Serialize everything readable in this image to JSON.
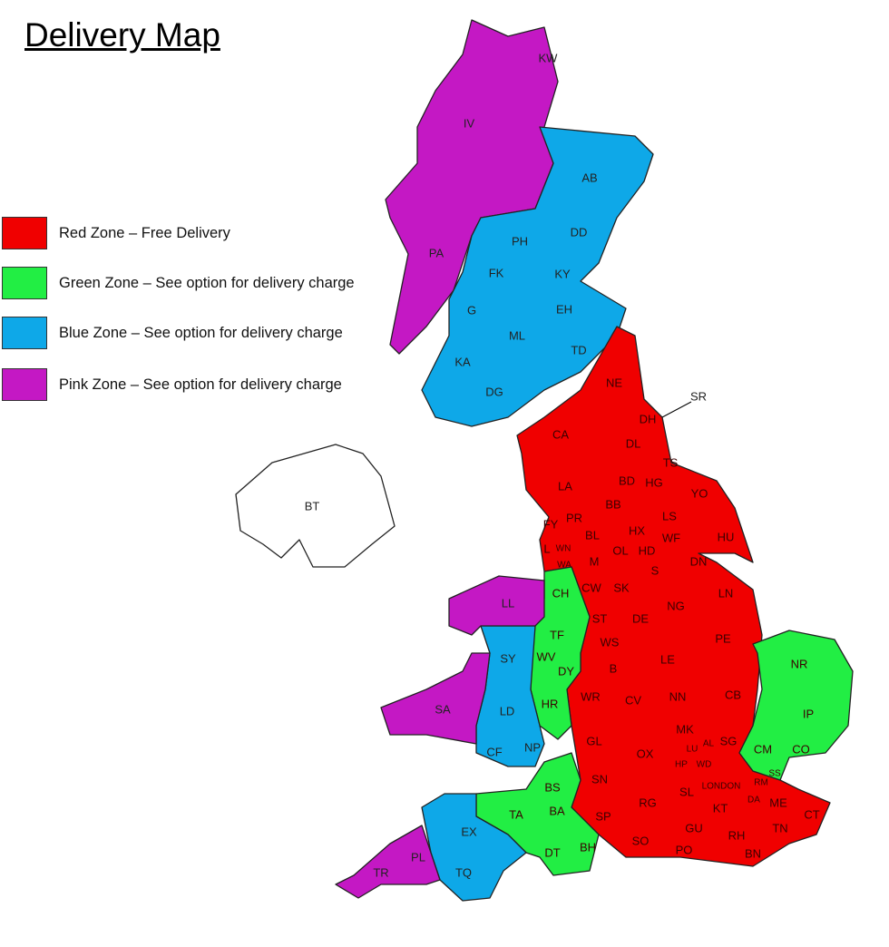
{
  "title": "Delivery Map",
  "legend": [
    {
      "zone": "red",
      "label": "Red Zone – Free Delivery",
      "color": "#f00000"
    },
    {
      "zone": "green",
      "label": "Green Zone – See option for delivery charge",
      "color": "#22ee44"
    },
    {
      "zone": "blue",
      "label": "Blue Zone – See option for delivery charge",
      "color": "#0ea8e8"
    },
    {
      "zone": "pink",
      "label": "Pink Zone – See option for delivery charge",
      "color": "#c418c4"
    }
  ],
  "areas": [
    {
      "code": "KW",
      "zone": "pink"
    },
    {
      "code": "IV",
      "zone": "pink"
    },
    {
      "code": "PA",
      "zone": "pink"
    },
    {
      "code": "AB",
      "zone": "blue"
    },
    {
      "code": "PH",
      "zone": "blue"
    },
    {
      "code": "DD",
      "zone": "blue"
    },
    {
      "code": "FK",
      "zone": "blue"
    },
    {
      "code": "KY",
      "zone": "blue"
    },
    {
      "code": "EH",
      "zone": "blue"
    },
    {
      "code": "G",
      "zone": "blue"
    },
    {
      "code": "ML",
      "zone": "blue"
    },
    {
      "code": "TD",
      "zone": "blue"
    },
    {
      "code": "KA",
      "zone": "blue"
    },
    {
      "code": "DG",
      "zone": "blue"
    },
    {
      "code": "NE",
      "zone": "red"
    },
    {
      "code": "SR",
      "zone": "red"
    },
    {
      "code": "DH",
      "zone": "red"
    },
    {
      "code": "CA",
      "zone": "red"
    },
    {
      "code": "DL",
      "zone": "red"
    },
    {
      "code": "TS",
      "zone": "red"
    },
    {
      "code": "BD",
      "zone": "red"
    },
    {
      "code": "HG",
      "zone": "red"
    },
    {
      "code": "YO",
      "zone": "red"
    },
    {
      "code": "LA",
      "zone": "red"
    },
    {
      "code": "BB",
      "zone": "red"
    },
    {
      "code": "PR",
      "zone": "red"
    },
    {
      "code": "LS",
      "zone": "red"
    },
    {
      "code": "FY",
      "zone": "red"
    },
    {
      "code": "BL",
      "zone": "red"
    },
    {
      "code": "HX",
      "zone": "red"
    },
    {
      "code": "WF",
      "zone": "red"
    },
    {
      "code": "HU",
      "zone": "red"
    },
    {
      "code": "WN",
      "zone": "red"
    },
    {
      "code": "L",
      "zone": "red"
    },
    {
      "code": "OL",
      "zone": "red"
    },
    {
      "code": "HD",
      "zone": "red"
    },
    {
      "code": "WA",
      "zone": "red"
    },
    {
      "code": "M",
      "zone": "red"
    },
    {
      "code": "S",
      "zone": "red"
    },
    {
      "code": "DN",
      "zone": "red"
    },
    {
      "code": "CW",
      "zone": "red"
    },
    {
      "code": "SK",
      "zone": "red"
    },
    {
      "code": "NG",
      "zone": "red"
    },
    {
      "code": "LN",
      "zone": "red"
    },
    {
      "code": "ST",
      "zone": "red"
    },
    {
      "code": "DE",
      "zone": "red"
    },
    {
      "code": "PE",
      "zone": "red"
    },
    {
      "code": "WS",
      "zone": "red"
    },
    {
      "code": "LE",
      "zone": "red"
    },
    {
      "code": "B",
      "zone": "red"
    },
    {
      "code": "WR",
      "zone": "red"
    },
    {
      "code": "CV",
      "zone": "red"
    },
    {
      "code": "NN",
      "zone": "red"
    },
    {
      "code": "CB",
      "zone": "red"
    },
    {
      "code": "MK",
      "zone": "red"
    },
    {
      "code": "AL",
      "zone": "red"
    },
    {
      "code": "SG",
      "zone": "red"
    },
    {
      "code": "LU",
      "zone": "red"
    },
    {
      "code": "GL",
      "zone": "red"
    },
    {
      "code": "OX",
      "zone": "red"
    },
    {
      "code": "HP",
      "zone": "red"
    },
    {
      "code": "WD",
      "zone": "red"
    },
    {
      "code": "SN",
      "zone": "red"
    },
    {
      "code": "LONDON",
      "zone": "red"
    },
    {
      "code": "RM",
      "zone": "red"
    },
    {
      "code": "SL",
      "zone": "red"
    },
    {
      "code": "DA",
      "zone": "red"
    },
    {
      "code": "ME",
      "zone": "red"
    },
    {
      "code": "CT",
      "zone": "red"
    },
    {
      "code": "KT",
      "zone": "red"
    },
    {
      "code": "RG",
      "zone": "red"
    },
    {
      "code": "SP",
      "zone": "red"
    },
    {
      "code": "GU",
      "zone": "red"
    },
    {
      "code": "TN",
      "zone": "red"
    },
    {
      "code": "RH",
      "zone": "red"
    },
    {
      "code": "SO",
      "zone": "red"
    },
    {
      "code": "PO",
      "zone": "red"
    },
    {
      "code": "BN",
      "zone": "red"
    },
    {
      "code": "CH",
      "zone": "green"
    },
    {
      "code": "TF",
      "zone": "green"
    },
    {
      "code": "WV",
      "zone": "green"
    },
    {
      "code": "DY",
      "zone": "green"
    },
    {
      "code": "HR",
      "zone": "green"
    },
    {
      "code": "NR",
      "zone": "green"
    },
    {
      "code": "IP",
      "zone": "green"
    },
    {
      "code": "CM",
      "zone": "green"
    },
    {
      "code": "CO",
      "zone": "green"
    },
    {
      "code": "SS",
      "zone": "green"
    },
    {
      "code": "BS",
      "zone": "green"
    },
    {
      "code": "BA",
      "zone": "green"
    },
    {
      "code": "TA",
      "zone": "green"
    },
    {
      "code": "DT",
      "zone": "green"
    },
    {
      "code": "BH",
      "zone": "green"
    },
    {
      "code": "LL",
      "zone": "pink"
    },
    {
      "code": "SA",
      "zone": "pink"
    },
    {
      "code": "PL",
      "zone": "pink"
    },
    {
      "code": "TR",
      "zone": "pink"
    },
    {
      "code": "SY",
      "zone": "blue"
    },
    {
      "code": "LD",
      "zone": "blue"
    },
    {
      "code": "CF",
      "zone": "blue"
    },
    {
      "code": "NP",
      "zone": "blue"
    },
    {
      "code": "EX",
      "zone": "blue"
    },
    {
      "code": "TQ",
      "zone": "blue"
    },
    {
      "code": "BT",
      "zone": "none"
    }
  ]
}
